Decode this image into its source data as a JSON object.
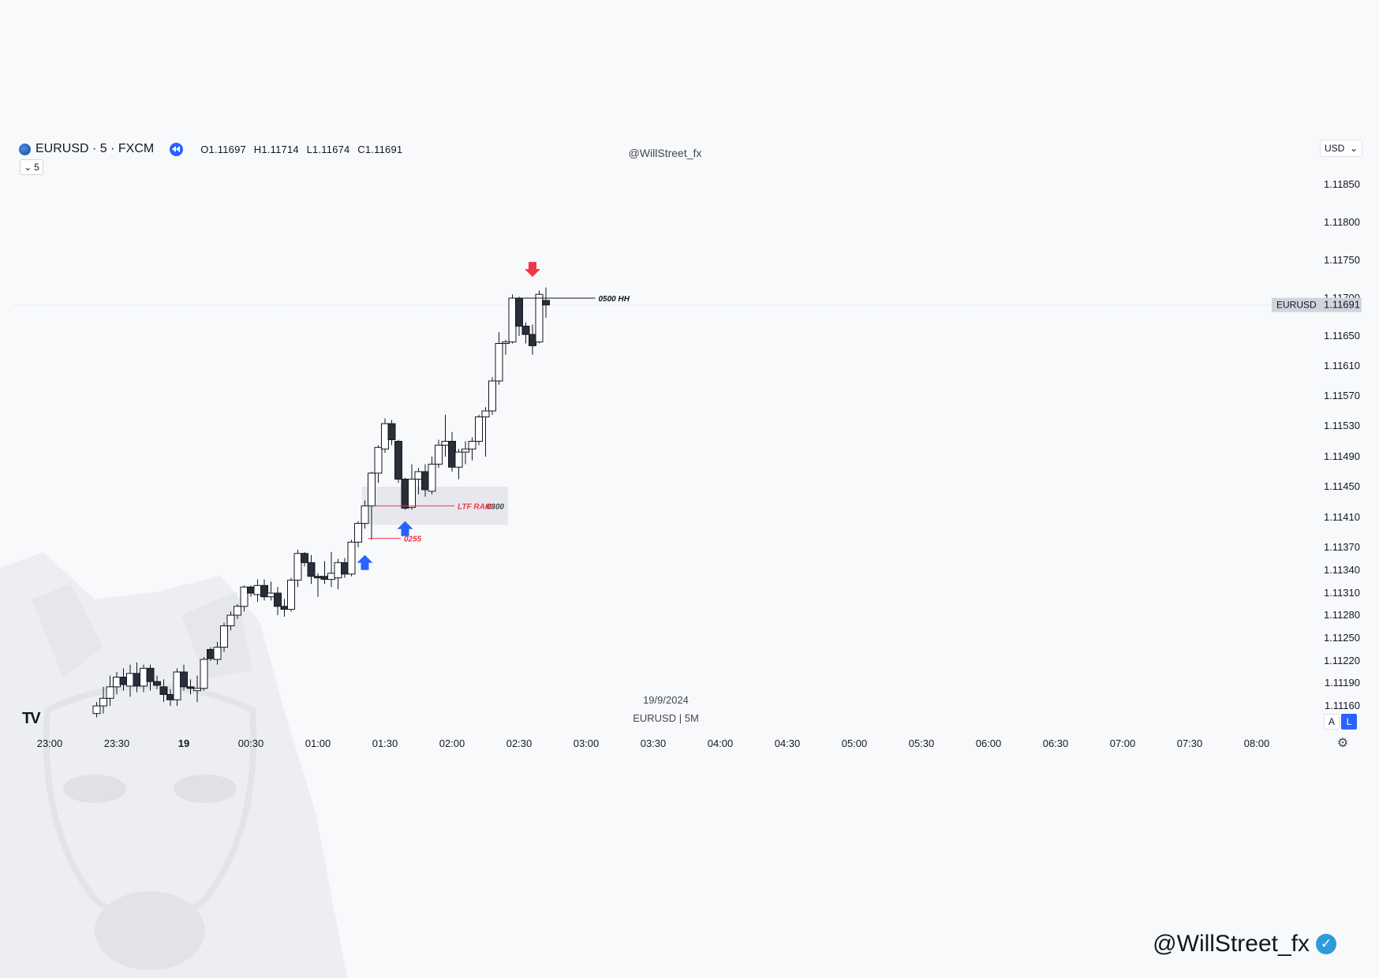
{
  "header": {
    "symbol_title": "EURUSD · 5 · FXCM",
    "ohlc": {
      "open": "O1.11697",
      "high": "H1.11714",
      "low": "L1.11674",
      "close": "C1.11691"
    },
    "indicator_count": "5",
    "watermark": "@WillStreet_fx",
    "currency": "USD"
  },
  "caption": {
    "date": "19/9/2024",
    "symbol_tf": "EURUSD | 5M"
  },
  "price_axis_buttons": {
    "auto": "A",
    "log": "L"
  },
  "signature": "@WillStreet_fx",
  "colors": {
    "bull_body": "#ffffff",
    "bear_body": "#2a2e39",
    "outline": "#131722",
    "accent_blue": "#2962ff",
    "accent_red": "#f23645",
    "zone_fill": "#e3e5ea"
  },
  "chart_data": {
    "type": "candlestick",
    "symbol": "EURUSD",
    "timeframe": "5",
    "x_ticks": [
      "23:00",
      "23:30",
      "19",
      "00:30",
      "01:00",
      "01:30",
      "02:00",
      "02:30",
      "03:00",
      "03:30",
      "04:00",
      "04:30",
      "05:00",
      "05:30",
      "06:00",
      "06:30",
      "07:00",
      "07:30",
      "08:00"
    ],
    "y_ticks": [
      "1.11850",
      "1.11800",
      "1.11750",
      "1.11700",
      "1.11650",
      "1.11610",
      "1.11570",
      "1.11530",
      "1.11490",
      "1.11450",
      "1.11410",
      "1.11370",
      "1.11340",
      "1.11310",
      "1.11280",
      "1.11250",
      "1.11220",
      "1.11190",
      "1.11160"
    ],
    "last_price": {
      "symbol": "EURUSD",
      "value": "1.11691"
    },
    "candles": [
      {
        "t": "23:35",
        "o": 1.1115,
        "h": 1.11165,
        "l": 1.11145,
        "c": 1.1116
      },
      {
        "t": "23:40",
        "o": 1.1116,
        "h": 1.11185,
        "l": 1.1115,
        "c": 1.1117
      },
      {
        "t": "23:45",
        "o": 1.1117,
        "h": 1.112,
        "l": 1.1116,
        "c": 1.11185
      },
      {
        "t": "23:50",
        "o": 1.11185,
        "h": 1.11205,
        "l": 1.11175,
        "c": 1.11198
      },
      {
        "t": "23:55",
        "o": 1.11198,
        "h": 1.1121,
        "l": 1.1118,
        "c": 1.11188
      },
      {
        "t": "00:00",
        "o": 1.11186,
        "h": 1.11215,
        "l": 1.11172,
        "c": 1.11203
      },
      {
        "t": "00:05",
        "o": 1.11203,
        "h": 1.11218,
        "l": 1.11178,
        "c": 1.11186
      },
      {
        "t": "00:10",
        "o": 1.11186,
        "h": 1.11215,
        "l": 1.11178,
        "c": 1.1121
      },
      {
        "t": "00:15",
        "o": 1.1121,
        "h": 1.11215,
        "l": 1.1118,
        "c": 1.11192
      },
      {
        "t": "00:20",
        "o": 1.11192,
        "h": 1.112,
        "l": 1.11182,
        "c": 1.11187
      },
      {
        "t": "00:25",
        "o": 1.11185,
        "h": 1.11195,
        "l": 1.11165,
        "c": 1.11175
      },
      {
        "t": "00:30",
        "o": 1.11175,
        "h": 1.11182,
        "l": 1.1116,
        "c": 1.11168
      },
      {
        "t": "00:35",
        "o": 1.11168,
        "h": 1.1121,
        "l": 1.1116,
        "c": 1.11205
      },
      {
        "t": "00:40",
        "o": 1.11205,
        "h": 1.11215,
        "l": 1.1118,
        "c": 1.11185
      },
      {
        "t": "00:45",
        "o": 1.11185,
        "h": 1.11195,
        "l": 1.11175,
        "c": 1.11183
      },
      {
        "t": "00:50",
        "o": 1.1118,
        "h": 1.112,
        "l": 1.11165,
        "c": 1.11183
      },
      {
        "t": "00:55",
        "o": 1.11183,
        "h": 1.11225,
        "l": 1.1118,
        "c": 1.11222
      },
      {
        "t": "01:00",
        "o": 1.11235,
        "h": 1.11238,
        "l": 1.1122,
        "c": 1.11223
      },
      {
        "t": "01:05",
        "o": 1.11222,
        "h": 1.11245,
        "l": 1.11215,
        "c": 1.11238
      },
      {
        "t": "01:10",
        "o": 1.11238,
        "h": 1.1127,
        "l": 1.11232,
        "c": 1.11266
      },
      {
        "t": "01:15",
        "o": 1.11266,
        "h": 1.11285,
        "l": 1.1126,
        "c": 1.1128
      },
      {
        "t": "01:20",
        "o": 1.1128,
        "h": 1.11295,
        "l": 1.11275,
        "c": 1.11292
      },
      {
        "t": "01:25",
        "o": 1.11292,
        "h": 1.1132,
        "l": 1.11285,
        "c": 1.11318
      },
      {
        "t": "01:30",
        "o": 1.11318,
        "h": 1.1132,
        "l": 1.11305,
        "c": 1.1131
      },
      {
        "t": "01:35",
        "o": 1.11308,
        "h": 1.11328,
        "l": 1.11298,
        "c": 1.1132
      },
      {
        "t": "01:40",
        "o": 1.1132,
        "h": 1.11328,
        "l": 1.113,
        "c": 1.11305
      },
      {
        "t": "01:45",
        "o": 1.11305,
        "h": 1.11325,
        "l": 1.113,
        "c": 1.1131
      },
      {
        "t": "01:50",
        "o": 1.1131,
        "h": 1.11318,
        "l": 1.1128,
        "c": 1.11292
      },
      {
        "t": "01:55",
        "o": 1.11292,
        "h": 1.11302,
        "l": 1.11278,
        "c": 1.11288
      },
      {
        "t": "02:00",
        "o": 1.11288,
        "h": 1.1133,
        "l": 1.11285,
        "c": 1.11327
      },
      {
        "t": "02:05",
        "o": 1.11327,
        "h": 1.11367,
        "l": 1.11318,
        "c": 1.11362
      },
      {
        "t": "02:10",
        "o": 1.11362,
        "h": 1.11364,
        "l": 1.11345,
        "c": 1.1135
      },
      {
        "t": "02:15",
        "o": 1.1135,
        "h": 1.1136,
        "l": 1.11322,
        "c": 1.11332
      },
      {
        "t": "02:20",
        "o": 1.11332,
        "h": 1.11336,
        "l": 1.11305,
        "c": 1.1133
      },
      {
        "t": "02:25",
        "o": 1.11332,
        "h": 1.11352,
        "l": 1.11322,
        "c": 1.11328
      },
      {
        "t": "02:30",
        "o": 1.11328,
        "h": 1.11364,
        "l": 1.11318,
        "c": 1.11336
      },
      {
        "t": "02:35",
        "o": 1.1133,
        "h": 1.11355,
        "l": 1.11315,
        "c": 1.1135
      },
      {
        "t": "02:40",
        "o": 1.1135,
        "h": 1.11356,
        "l": 1.1133,
        "c": 1.11335
      },
      {
        "t": "02:45",
        "o": 1.11335,
        "h": 1.1138,
        "l": 1.11332,
        "c": 1.11377
      },
      {
        "t": "02:50",
        "o": 1.11377,
        "h": 1.11405,
        "l": 1.1137,
        "c": 1.11402
      },
      {
        "t": "02:55",
        "o": 1.11402,
        "h": 1.11432,
        "l": 1.11395,
        "c": 1.11425
      },
      {
        "t": "03:00",
        "o": 1.11425,
        "h": 1.1147,
        "l": 1.1138,
        "c": 1.11468
      },
      {
        "t": "03:05",
        "o": 1.11468,
        "h": 1.11505,
        "l": 1.11455,
        "c": 1.11502
      },
      {
        "t": "03:10",
        "o": 1.115,
        "h": 1.1154,
        "l": 1.11495,
        "c": 1.11533
      },
      {
        "t": "03:15",
        "o": 1.11533,
        "h": 1.11538,
        "l": 1.11505,
        "c": 1.11512
      },
      {
        "t": "03:20",
        "o": 1.1151,
        "h": 1.11512,
        "l": 1.11455,
        "c": 1.1146
      },
      {
        "t": "03:25",
        "o": 1.1146,
        "h": 1.11462,
        "l": 1.1142,
        "c": 1.11422
      },
      {
        "t": "03:30",
        "o": 1.11423,
        "h": 1.1148,
        "l": 1.1142,
        "c": 1.1146
      },
      {
        "t": "03:35",
        "o": 1.1146,
        "h": 1.11475,
        "l": 1.1144,
        "c": 1.1147
      },
      {
        "t": "03:40",
        "o": 1.1147,
        "h": 1.1148,
        "l": 1.11437,
        "c": 1.11446
      },
      {
        "t": "03:45",
        "o": 1.11444,
        "h": 1.1149,
        "l": 1.1144,
        "c": 1.1148
      },
      {
        "t": "03:50",
        "o": 1.1148,
        "h": 1.11512,
        "l": 1.11475,
        "c": 1.11505
      },
      {
        "t": "03:55",
        "o": 1.11505,
        "h": 1.11545,
        "l": 1.1149,
        "c": 1.1151
      },
      {
        "t": "04:00",
        "o": 1.1151,
        "h": 1.11522,
        "l": 1.1147,
        "c": 1.11476
      },
      {
        "t": "04:05",
        "o": 1.11476,
        "h": 1.115,
        "l": 1.1146,
        "c": 1.11496
      },
      {
        "t": "04:10",
        "o": 1.11496,
        "h": 1.1151,
        "l": 1.1148,
        "c": 1.115
      },
      {
        "t": "04:15",
        "o": 1.115,
        "h": 1.11515,
        "l": 1.11485,
        "c": 1.1151
      },
      {
        "t": "04:20",
        "o": 1.1151,
        "h": 1.11545,
        "l": 1.11505,
        "c": 1.11542
      },
      {
        "t": "04:25",
        "o": 1.11542,
        "h": 1.11555,
        "l": 1.1149,
        "c": 1.1155
      },
      {
        "t": "04:30",
        "o": 1.1155,
        "h": 1.11595,
        "l": 1.11545,
        "c": 1.1159
      },
      {
        "t": "04:35",
        "o": 1.1159,
        "h": 1.11655,
        "l": 1.11585,
        "c": 1.1164
      },
      {
        "t": "04:40",
        "o": 1.1164,
        "h": 1.11645,
        "l": 1.11625,
        "c": 1.11642
      },
      {
        "t": "04:45",
        "o": 1.11642,
        "h": 1.11705,
        "l": 1.1164,
        "c": 1.117
      },
      {
        "t": "04:50",
        "o": 1.117,
        "h": 1.11702,
        "l": 1.1165,
        "c": 1.11663
      },
      {
        "t": "04:55",
        "o": 1.11663,
        "h": 1.11668,
        "l": 1.1164,
        "c": 1.11652
      },
      {
        "t": "05:00",
        "o": 1.11652,
        "h": 1.11665,
        "l": 1.11625,
        "c": 1.11637
      },
      {
        "t": "05:05",
        "o": 1.11642,
        "h": 1.1171,
        "l": 1.1164,
        "c": 1.11705
      },
      {
        "t": "05:10",
        "o": 1.11697,
        "h": 1.11714,
        "l": 1.11674,
        "c": 1.11691
      }
    ],
    "annotations": [
      {
        "type": "zone",
        "label": "0300",
        "from": "03:00",
        "to": "04:40",
        "top": 1.1145,
        "bottom": 1.114
      },
      {
        "type": "hline",
        "label": "LTF RAID",
        "price": 1.11425,
        "from": "03:00",
        "to": "04:00",
        "color": "#f23645"
      },
      {
        "type": "hline",
        "label": "0255",
        "price": 1.11382,
        "from": "02:55",
        "to": "03:20",
        "color": "#f23645"
      },
      {
        "type": "hline",
        "label": "0500 HH",
        "price": 1.117,
        "from": "04:45",
        "to": "05:45",
        "color": "#131722"
      },
      {
        "type": "arrow",
        "direction": "up",
        "time": "02:55",
        "price": 1.1136,
        "color": "#2962ff"
      },
      {
        "type": "arrow",
        "direction": "up",
        "time": "03:25",
        "price": 1.11405,
        "color": "#2962ff"
      },
      {
        "type": "arrow",
        "direction": "down",
        "time": "05:00",
        "price": 1.11728,
        "color": "#f23645"
      }
    ]
  }
}
